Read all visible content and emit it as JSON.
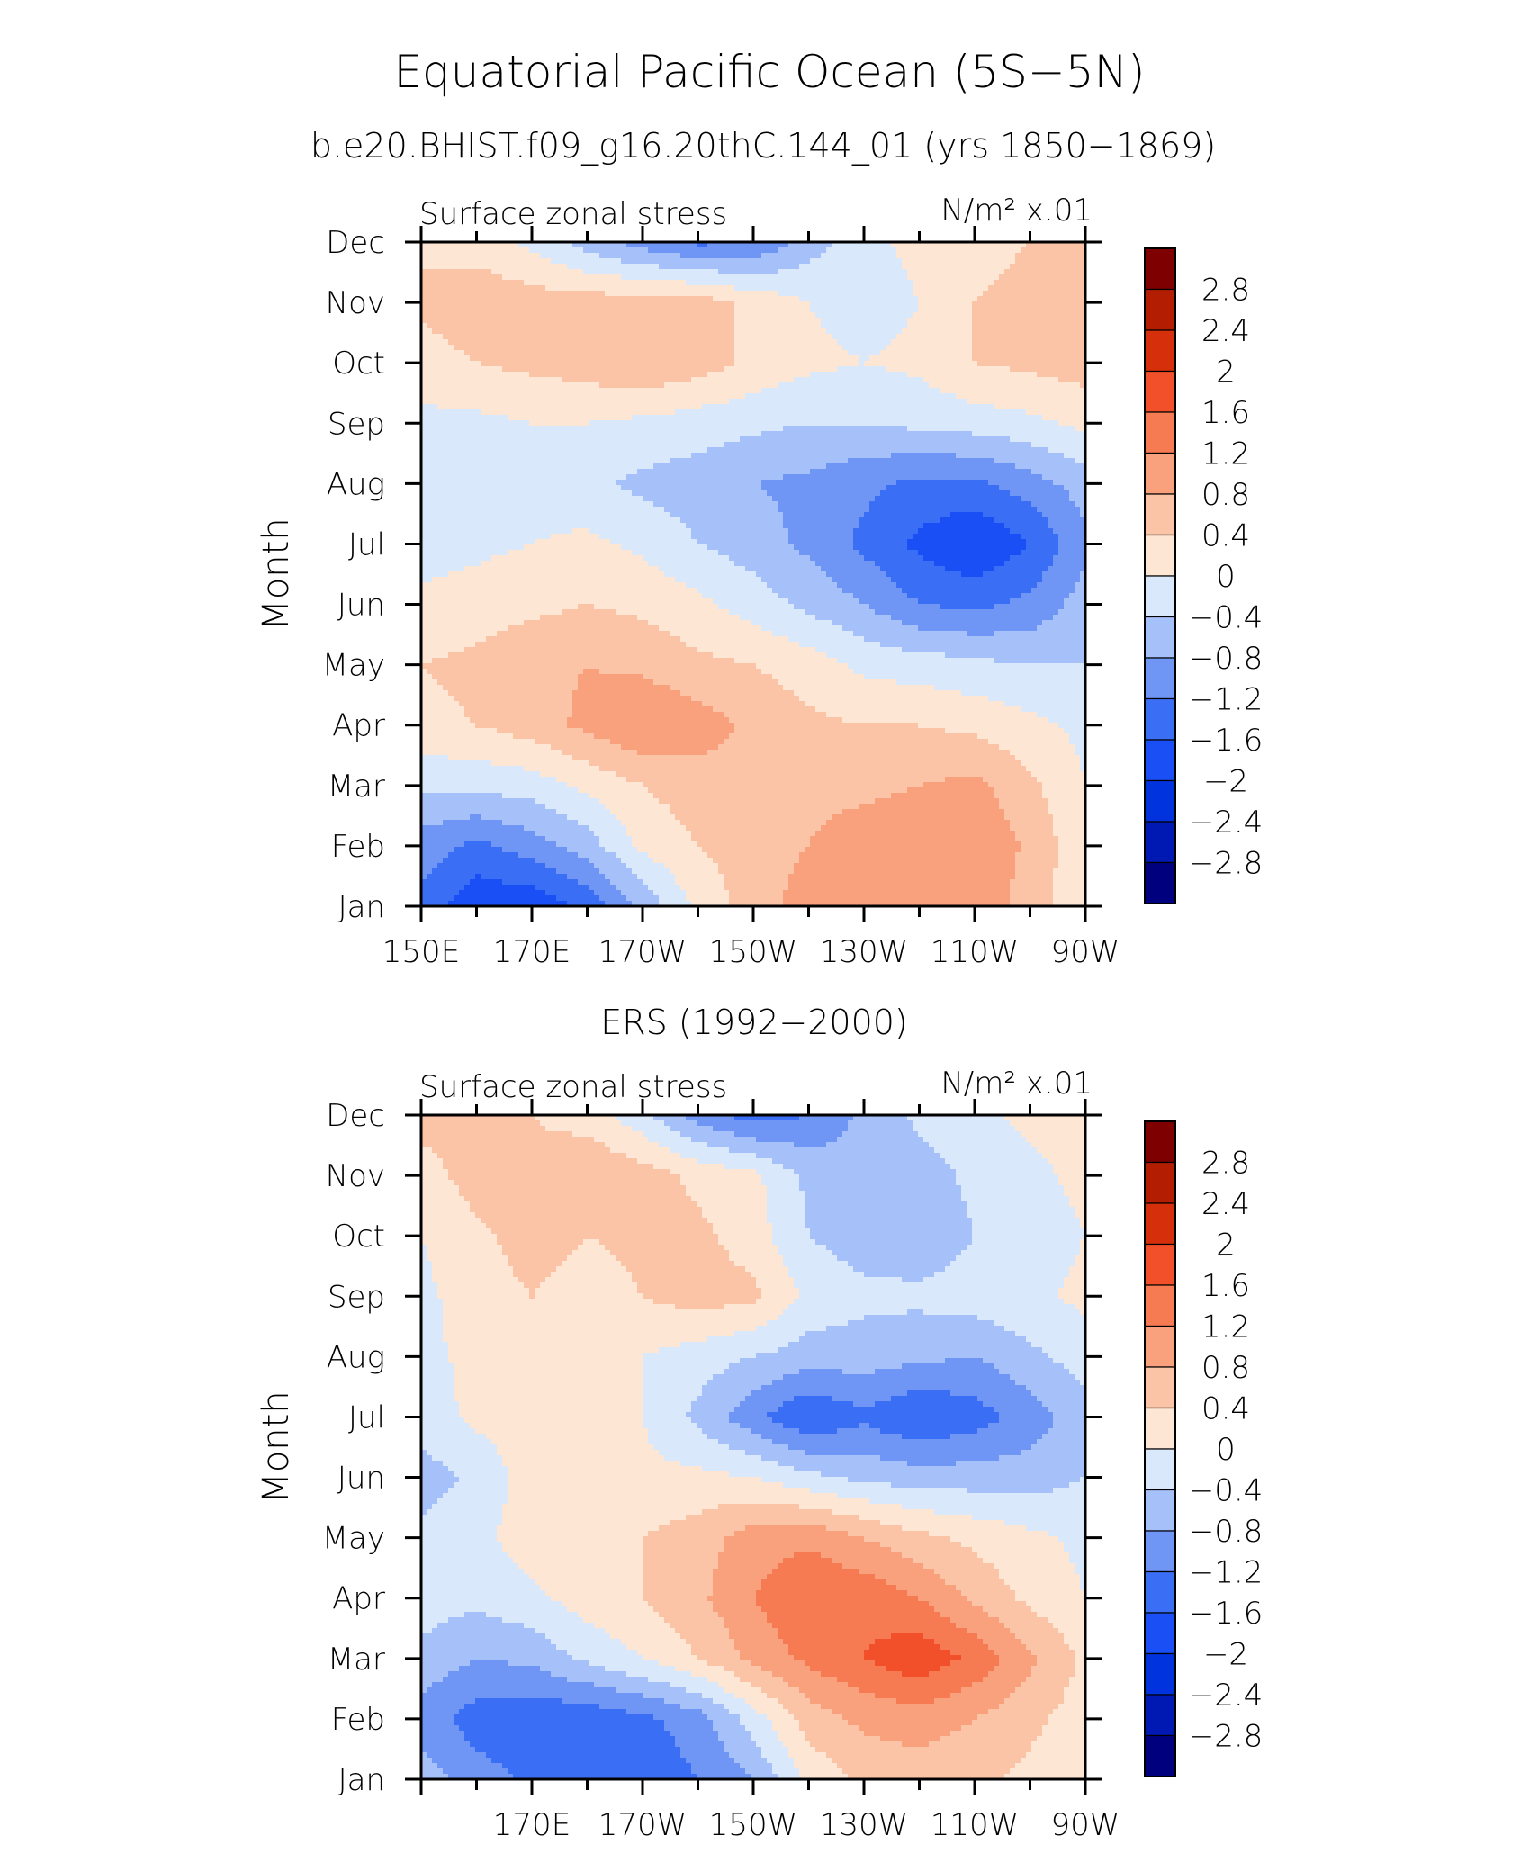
{
  "figure": {
    "title": "Equatorial Pacific Ocean (5S−5N)",
    "subtitle": "b.e20.BHIST.f09_g16.20thC.144_01 (yrs 1850−1869)"
  },
  "colorbar": {
    "levels": [
      -2.8,
      -2.4,
      -2.0,
      -1.6,
      -1.2,
      -0.8,
      -0.4,
      0,
      0.4,
      0.8,
      1.2,
      1.6,
      2.0,
      2.4,
      2.8
    ],
    "labels": [
      "2.8",
      "2.4",
      "2",
      "1.6",
      "1.2",
      "0.8",
      "0.4",
      "0",
      "−0.4",
      "−0.8",
      "−1.2",
      "−1.6",
      "−2",
      "−2.4",
      "−2.8"
    ],
    "colors": [
      "#00007f",
      "#0019b3",
      "#0033dd",
      "#1a4ff5",
      "#3a6ef5",
      "#6f95f5",
      "#a6c0fa",
      "#dae8fc",
      "#fde6d4",
      "#fbc4a6",
      "#f9a17d",
      "#f67b52",
      "#f2502a",
      "#d62f0b",
      "#b31d02",
      "#7f0000"
    ]
  },
  "chart_data": [
    {
      "type": "heatmap",
      "panel_title": "",
      "left_label": "Surface zonal stress",
      "units_label": "N/m² x.01",
      "xlabel": "",
      "ylabel": "Month",
      "x_range_deg_east": [
        150,
        270
      ],
      "y_categories": [
        "Jan",
        "Feb",
        "Mar",
        "Apr",
        "May",
        "Jun",
        "Jul",
        "Aug",
        "Sep",
        "Oct",
        "Nov",
        "Dec"
      ],
      "x_tick_labels": [
        "150E",
        "170E",
        "170W",
        "150W",
        "130W",
        "110W",
        "90W"
      ],
      "x_tick_values": [
        150,
        170,
        190,
        210,
        230,
        250,
        270
      ],
      "value_field": [
        [
          -1.3,
          -1.9,
          -1.9,
          -1.5,
          -0.7,
          0.1,
          0.6,
          1.0,
          1.0,
          1.1,
          1.1,
          0.6,
          0.1
        ],
        [
          -1.0,
          -1.3,
          -1.0,
          -0.6,
          0.1,
          0.4,
          0.6,
          0.8,
          1.0,
          1.1,
          1.2,
          0.7,
          0.1
        ],
        [
          -0.3,
          -0.3,
          -0.2,
          0.1,
          0.4,
          0.6,
          0.7,
          0.7,
          0.7,
          0.8,
          0.9,
          0.5,
          0.0
        ],
        [
          0.3,
          0.4,
          0.6,
          0.9,
          1.2,
          1.0,
          0.7,
          0.5,
          0.4,
          0.4,
          0.3,
          0.1,
          -0.1
        ],
        [
          0.4,
          0.5,
          0.7,
          0.8,
          0.7,
          0.5,
          0.4,
          0.2,
          -0.1,
          -0.2,
          -0.3,
          -0.4,
          -0.4
        ],
        [
          0.1,
          0.2,
          0.3,
          0.4,
          0.3,
          0.1,
          -0.2,
          -0.5,
          -0.8,
          -1.2,
          -1.3,
          -1.1,
          -0.6
        ],
        [
          -0.2,
          -0.1,
          0.0,
          0.1,
          -0.1,
          -0.4,
          -0.6,
          -0.9,
          -1.3,
          -1.7,
          -2.0,
          -1.6,
          -0.9
        ],
        [
          -0.2,
          -0.2,
          -0.2,
          -0.3,
          -0.5,
          -0.6,
          -0.8,
          -0.9,
          -1.1,
          -1.3,
          -1.3,
          -1.0,
          -0.6
        ],
        [
          -0.1,
          -0.1,
          0.0,
          0.0,
          -0.1,
          -0.2,
          -0.3,
          -0.4,
          -0.4,
          -0.3,
          -0.2,
          -0.1,
          0.1
        ],
        [
          0.2,
          0.4,
          0.5,
          0.6,
          0.8,
          0.6,
          0.3,
          0.1,
          0.0,
          0.1,
          0.4,
          0.5,
          0.6
        ],
        [
          0.5,
          0.7,
          0.6,
          0.6,
          0.6,
          0.6,
          0.3,
          0.0,
          -0.2,
          0.0,
          0.4,
          0.5,
          0.5
        ],
        [
          0.3,
          0.2,
          -0.1,
          -0.6,
          -1.0,
          -1.3,
          -1.2,
          -0.6,
          -0.1,
          0.1,
          0.3,
          0.4,
          0.4
        ]
      ]
    },
    {
      "type": "heatmap",
      "panel_title": "ERS (1992−2000)",
      "left_label": "Surface zonal stress",
      "units_label": "N/m² x.01",
      "xlabel": "",
      "ylabel": "Month",
      "x_range_deg_east": [
        150,
        270
      ],
      "y_categories": [
        "Jan",
        "Feb",
        "Mar",
        "Apr",
        "May",
        "Jun",
        "Jul",
        "Aug",
        "Sep",
        "Oct",
        "Nov",
        "Dec"
      ],
      "x_tick_labels": [
        "170E",
        "170W",
        "150W",
        "130W",
        "110W",
        "90W"
      ],
      "x_tick_values": [
        170,
        190,
        210,
        230,
        250,
        270
      ],
      "value_field": [
        [
          -0.6,
          -1.0,
          -1.3,
          -1.5,
          -1.5,
          -1.2,
          -0.8,
          0.1,
          0.5,
          0.6,
          0.5,
          0.3,
          0.1
        ],
        [
          -1.0,
          -1.4,
          -1.5,
          -1.5,
          -1.3,
          -1.0,
          -0.2,
          0.6,
          0.9,
          1.0,
          0.8,
          0.5,
          0.2
        ],
        [
          -0.5,
          -0.8,
          -0.7,
          -0.3,
          0.0,
          0.4,
          0.9,
          1.3,
          1.6,
          1.9,
          1.5,
          0.9,
          0.3
        ],
        [
          -0.2,
          -0.3,
          -0.1,
          0.2,
          0.4,
          0.7,
          1.2,
          1.6,
          1.5,
          1.2,
          0.7,
          0.3,
          0.0
        ],
        [
          -0.3,
          -0.1,
          0.2,
          0.3,
          0.4,
          0.6,
          1.0,
          1.1,
          0.8,
          0.5,
          0.3,
          0.1,
          -0.1
        ],
        [
          -0.6,
          -0.3,
          0.2,
          0.2,
          0.1,
          0.1,
          0.0,
          -0.3,
          -0.5,
          -0.6,
          -0.6,
          -0.6,
          -0.4
        ],
        [
          -0.2,
          0.1,
          0.2,
          0.2,
          0.0,
          -0.5,
          -1.1,
          -1.6,
          -1.3,
          -1.6,
          -1.4,
          -1.0,
          -0.6
        ],
        [
          -0.1,
          0.1,
          0.3,
          0.2,
          0.0,
          -0.2,
          -0.4,
          -0.6,
          -0.6,
          -0.7,
          -0.8,
          -0.5,
          -0.2
        ],
        [
          -0.1,
          0.2,
          0.4,
          0.2,
          0.4,
          0.6,
          0.5,
          -0.1,
          -0.3,
          -0.3,
          -0.2,
          -0.1,
          0.1
        ],
        [
          0.0,
          0.3,
          0.6,
          0.4,
          0.5,
          0.5,
          0.2,
          -0.4,
          -0.6,
          -0.7,
          -0.4,
          -0.2,
          0.0
        ],
        [
          0.2,
          0.6,
          0.5,
          0.8,
          0.6,
          0.3,
          0.1,
          -0.5,
          -0.7,
          -0.6,
          -0.3,
          -0.1,
          0.1
        ],
        [
          0.6,
          0.5,
          0.4,
          0.2,
          -0.3,
          -1.0,
          -1.4,
          -1.2,
          -0.7,
          -0.3,
          -0.1,
          0.1,
          0.2
        ]
      ]
    }
  ]
}
